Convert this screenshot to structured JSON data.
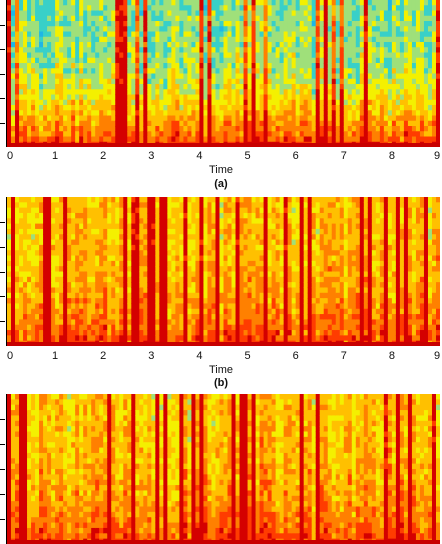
{
  "chart_data": [
    {
      "type": "heatmap",
      "subplot_label": "(a)",
      "xlabel": "Time",
      "xlim": [
        0,
        9
      ],
      "x_ticks": [
        "0",
        "1",
        "2",
        "3",
        "4",
        "5",
        "6",
        "7",
        "8",
        "9"
      ],
      "colormap": [
        "#1fb6e6",
        "#38d0c8",
        "#9fe07a",
        "#f4f000",
        "#ffc000",
        "#ff8000",
        "#ff3c00",
        "#d40000"
      ],
      "dominant_level": 0.3,
      "low_band_level": 0.85,
      "grid": false
    },
    {
      "type": "heatmap",
      "subplot_label": "(b)",
      "xlabel": "Time",
      "xlim": [
        0,
        9
      ],
      "x_ticks": [
        "0",
        "1",
        "2",
        "3",
        "4",
        "5",
        "6",
        "7",
        "8",
        "9"
      ],
      "colormap": [
        "#1fb6e6",
        "#38d0c8",
        "#9fe07a",
        "#f4f000",
        "#ffc000",
        "#ff8000",
        "#ff3c00",
        "#d40000"
      ],
      "dominant_level": 0.55,
      "low_band_level": 0.8,
      "grid": false
    },
    {
      "type": "heatmap",
      "subplot_label": "",
      "xlabel": "",
      "xlim": [
        0,
        9
      ],
      "x_ticks": [],
      "colormap": [
        "#1fb6e6",
        "#38d0c8",
        "#9fe07a",
        "#f4f000",
        "#ffc000",
        "#ff8000",
        "#ff3c00",
        "#d40000"
      ],
      "dominant_level": 0.55,
      "low_band_level": 0.8,
      "grid": false
    }
  ]
}
